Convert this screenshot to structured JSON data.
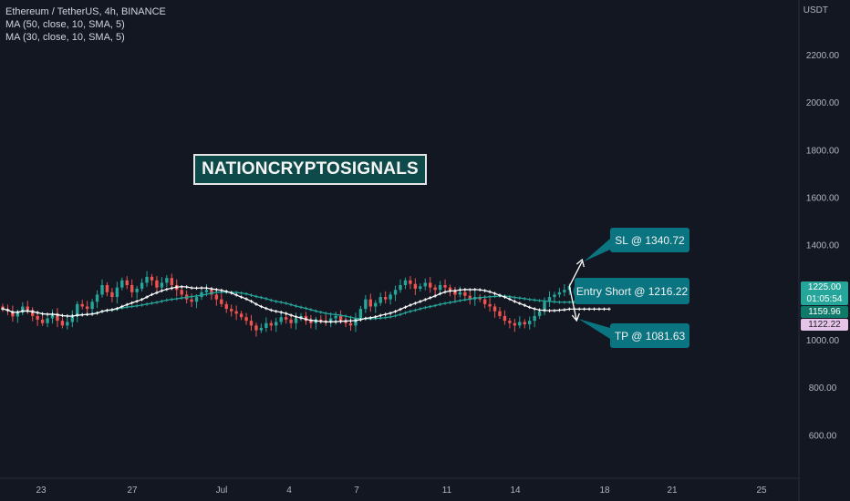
{
  "legend": {
    "symbol": "Ethereum / TetherUS, 4h, BINANCE",
    "ma1": "MA (50, close, 10, SMA, 5)",
    "ma2": "MA (30, close, 10, SMA, 5)"
  },
  "watermark": "NATIONCRYPTOSIGNALS",
  "currency": "USDT",
  "callouts": {
    "sl": "SL @ 1340.72",
    "entry": "Entry Short @ 1216.22",
    "tp": "TP @ 1081.63"
  },
  "price_tags": {
    "last_price": "1225.00",
    "countdown": "01:05:54",
    "ma_value_1": "1159.96",
    "ma_value_2": "1122.22"
  },
  "colors": {
    "background": "#131722",
    "up": "#26a69a",
    "down": "#ef5350",
    "ma_white": "#ffffff",
    "ma_teal": "#26a69a",
    "callout": "#0a7480"
  },
  "chart_data": {
    "type": "candlestick",
    "y_ticks": [
      "2200.00",
      "2000.00",
      "1800.00",
      "1600.00",
      "1400.00",
      "1000.00",
      "800.00",
      "600.00"
    ],
    "x_ticks": [
      "23",
      "27",
      "Jul",
      "4",
      "7",
      "11",
      "14",
      "18",
      "21",
      "25"
    ],
    "ylim": [
      520,
      2370
    ],
    "closes": [
      1130,
      1120,
      1098,
      1115,
      1140,
      1125,
      1100,
      1085,
      1070,
      1090,
      1110,
      1080,
      1060,
      1075,
      1100,
      1150,
      1140,
      1130,
      1160,
      1190,
      1230,
      1200,
      1180,
      1220,
      1250,
      1230,
      1200,
      1215,
      1240,
      1265,
      1250,
      1220,
      1240,
      1260,
      1230,
      1210,
      1190,
      1170,
      1160,
      1180,
      1200,
      1210,
      1190,
      1170,
      1150,
      1130,
      1120,
      1110,
      1095,
      1080,
      1060,
      1040,
      1050,
      1070,
      1060,
      1075,
      1095,
      1085,
      1070,
      1090,
      1100,
      1080,
      1070,
      1085,
      1080,
      1075,
      1090,
      1100,
      1080,
      1070,
      1060,
      1090,
      1130,
      1170,
      1140,
      1155,
      1180,
      1170,
      1190,
      1210,
      1230,
      1250,
      1235,
      1215,
      1225,
      1240,
      1220,
      1210,
      1230,
      1220,
      1205,
      1190,
      1200,
      1185,
      1170,
      1180,
      1170,
      1150,
      1140,
      1120,
      1100,
      1080,
      1070,
      1060,
      1075,
      1065,
      1080,
      1100,
      1120,
      1160,
      1180,
      1190,
      1200,
      1210,
      1225
    ]
  }
}
